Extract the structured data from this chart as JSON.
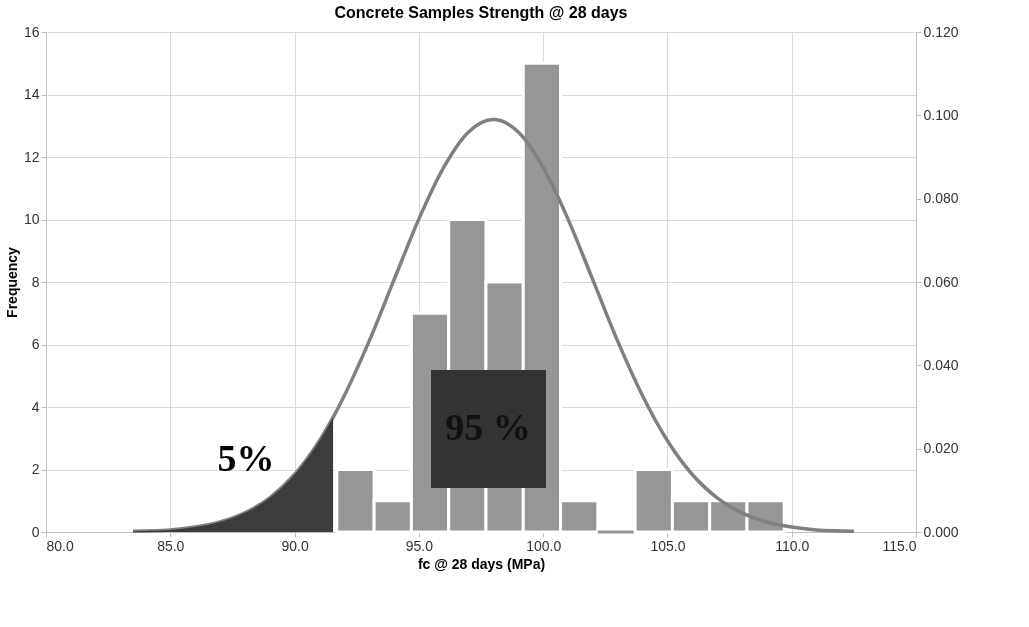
{
  "chart_data": {
    "type": "histogram",
    "title": "Concrete Samples Strength @ 28 days",
    "xlabel": "fc @ 28 days (MPa)",
    "ylabel": "Frequency",
    "bins": [
      91.7,
      93.2,
      94.7,
      96.2,
      97.7,
      99.2,
      100.7,
      102.2,
      103.7,
      105.2,
      106.7,
      108.2,
      109.7
    ],
    "values": [
      2,
      1,
      7,
      10,
      8,
      15,
      1,
      0,
      2,
      1,
      1,
      1
    ],
    "color": "#969696",
    "series": [
      {
        "type": "line",
        "axis": "y2",
        "line_style": "solid",
        "color": "#808080",
        "x": [
          83.5,
          85,
          86,
          87,
          88,
          89,
          90,
          91,
          91.55,
          92,
          93,
          94,
          95,
          96,
          97,
          98,
          99,
          100,
          101,
          102,
          103,
          104,
          105,
          106,
          107,
          108,
          109,
          110,
          111,
          112.5
        ],
        "values": [
          0.0002,
          0.0005,
          0.0012,
          0.0024,
          0.0046,
          0.0082,
          0.0138,
          0.0219,
          0.0275,
          0.0327,
          0.0458,
          0.0605,
          0.0751,
          0.0875,
          0.096,
          0.099,
          0.096,
          0.0875,
          0.0751,
          0.0605,
          0.0458,
          0.0327,
          0.0219,
          0.0138,
          0.0082,
          0.0046,
          0.0024,
          0.0012,
          0.0005,
          0.0002
        ]
      },
      {
        "type": "area",
        "axis": "y2",
        "color": "#3c3c3c",
        "x": [
          83.5,
          85,
          86,
          87,
          88,
          89,
          90,
          91,
          91.55
        ],
        "values": [
          0.0002,
          0.0005,
          0.0012,
          0.0024,
          0.0046,
          0.0082,
          0.0138,
          0.0219,
          0.0275
        ]
      }
    ],
    "xlim": [
      80,
      115
    ],
    "xticks": [
      {
        "value": 80,
        "label": "80.0"
      },
      {
        "value": 85,
        "label": "85.0"
      },
      {
        "value": 90,
        "label": "90.0"
      },
      {
        "value": 95,
        "label": "95.0"
      },
      {
        "value": 100,
        "label": "100.0"
      },
      {
        "value": 105,
        "label": "105.0"
      },
      {
        "value": 110,
        "label": "110.0"
      },
      {
        "value": 115,
        "label": "115.0"
      }
    ],
    "ylim": [
      0,
      16
    ],
    "yticks": [
      0,
      2,
      4,
      6,
      8,
      10,
      12,
      14,
      16
    ],
    "y2lim": [
      0,
      0.12
    ],
    "y2ticks": [
      {
        "value": 0,
        "label": "0.000"
      },
      {
        "value": 0.02,
        "label": "0.020"
      },
      {
        "value": 0.04,
        "label": "0.040"
      },
      {
        "value": 0.06,
        "label": "0.060"
      },
      {
        "value": 0.08,
        "label": "0.080"
      },
      {
        "value": 0.1,
        "label": "0.100"
      },
      {
        "value": 0.12,
        "label": "0.120"
      }
    ],
    "grid": true,
    "annotations": [
      "5%",
      "95 %"
    ]
  }
}
